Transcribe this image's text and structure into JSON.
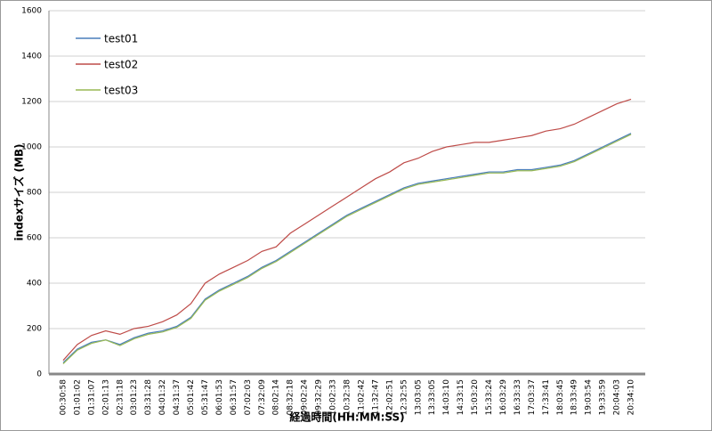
{
  "chart_data": {
    "type": "line",
    "x_label": "経過時間(HH:MM:SS)",
    "y_label": "indexサイズ (MB)",
    "categories": [
      "00:30:58",
      "01:01:02",
      "01:31:07",
      "02:01:13",
      "02:31:18",
      "03:01:23",
      "03:31:28",
      "04:01:32",
      "04:31:37",
      "05:01:42",
      "05:31:47",
      "06:01:53",
      "06:31:57",
      "07:02:03",
      "07:32:09",
      "08:02:14",
      "08:32:18",
      "09:02:24",
      "09:32:29",
      "10:02:33",
      "10:32:38",
      "11:02:42",
      "11:32:47",
      "12:02:51",
      "12:32:55",
      "13:03:05",
      "13:33:05",
      "14:03:10",
      "14:33:15",
      "15:03:20",
      "15:33:24",
      "16:03:29",
      "16:33:33",
      "17:03:37",
      "17:33:41",
      "18:03:45",
      "18:33:49",
      "19:03:54",
      "19:33:59",
      "20:04:03",
      "20:34:10"
    ],
    "series": [
      {
        "name": "test01",
        "color": "#4a7ebb",
        "values": [
          50,
          110,
          140,
          150,
          130,
          160,
          180,
          190,
          210,
          250,
          330,
          370,
          400,
          430,
          470,
          500,
          540,
          580,
          620,
          660,
          700,
          730,
          760,
          790,
          820,
          840,
          850,
          860,
          870,
          880,
          890,
          890,
          900,
          900,
          910,
          920,
          940,
          970,
          1000,
          1030,
          1060
        ]
      },
      {
        "name": "test02",
        "color": "#be4b48",
        "values": [
          60,
          130,
          170,
          190,
          175,
          200,
          210,
          230,
          260,
          310,
          400,
          440,
          470,
          500,
          540,
          560,
          620,
          660,
          700,
          740,
          780,
          820,
          860,
          890,
          930,
          950,
          980,
          1000,
          1010,
          1020,
          1020,
          1030,
          1040,
          1050,
          1070,
          1080,
          1100,
          1130,
          1160,
          1190,
          1210
        ]
      },
      {
        "name": "test03",
        "color": "#98b954",
        "values": [
          45,
          105,
          135,
          150,
          125,
          155,
          175,
          185,
          205,
          245,
          325,
          365,
          395,
          425,
          465,
          495,
          535,
          575,
          615,
          655,
          695,
          725,
          755,
          785,
          815,
          835,
          845,
          855,
          865,
          875,
          885,
          885,
          895,
          895,
          905,
          915,
          935,
          965,
          995,
          1025,
          1055
        ]
      }
    ],
    "ylim": [
      0,
      1600
    ],
    "yticks": [
      0,
      200,
      400,
      600,
      800,
      1000,
      1200,
      1400,
      1600
    ],
    "grid": true,
    "legend": "upper left"
  }
}
